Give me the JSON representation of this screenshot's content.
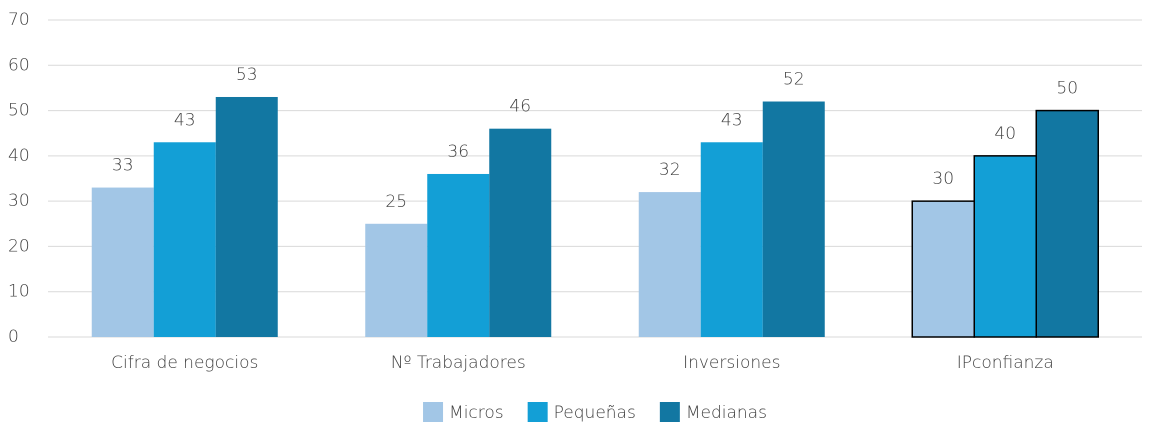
{
  "chart_data": {
    "type": "bar",
    "categories": [
      "Cifra de negocios",
      "Nº Trabajadores",
      "Inversiones",
      "IPconfianza"
    ],
    "series": [
      {
        "name": "Micros",
        "color": "#a2c6e6",
        "values": [
          33,
          25,
          32,
          30
        ]
      },
      {
        "name": "Pequeñas",
        "color": "#139fd6",
        "values": [
          43,
          36,
          43,
          40
        ]
      },
      {
        "name": "Medianas",
        "color": "#1277a2",
        "values": [
          53,
          46,
          52,
          50
        ]
      }
    ],
    "outline_categories": [
      3
    ],
    "ylim": [
      0,
      70
    ],
    "yticks": [
      0,
      10,
      20,
      30,
      40,
      50,
      60,
      70
    ],
    "grid": true,
    "legend": "bottom"
  }
}
